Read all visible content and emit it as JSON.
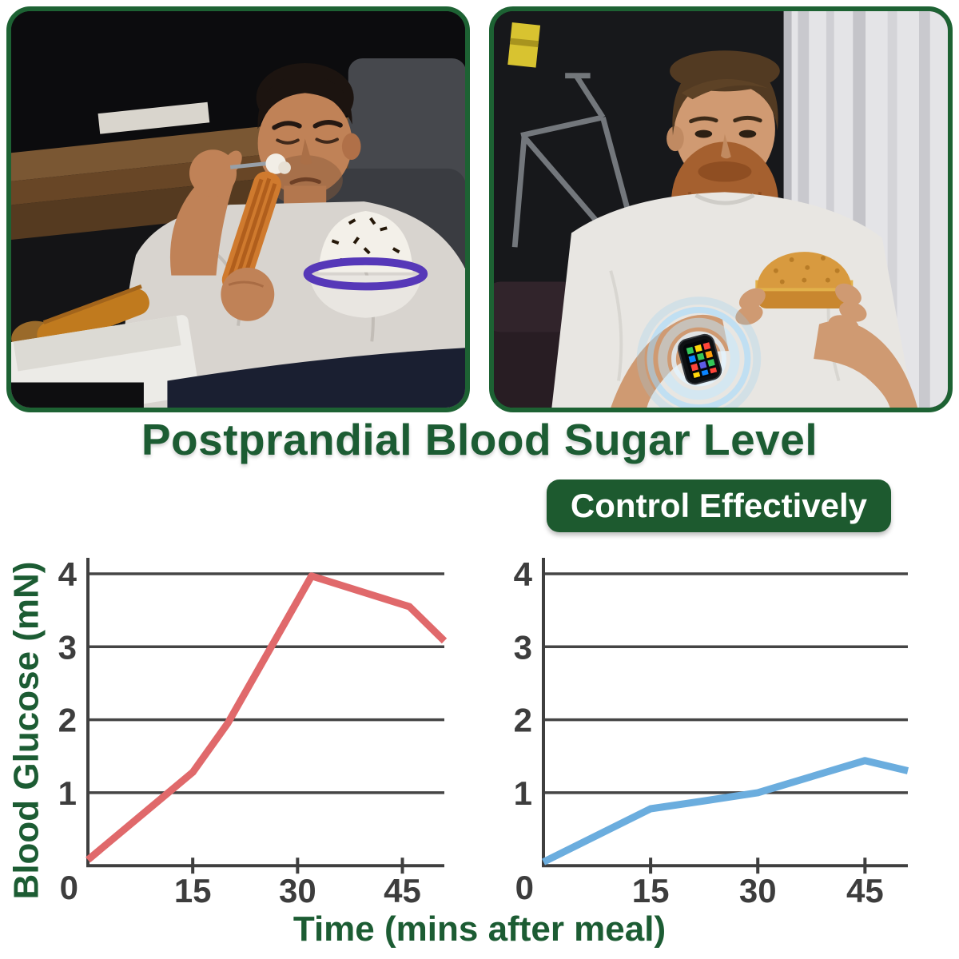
{
  "title": "Postprandial Blood Sugar Level",
  "badge_label": "Control Effectively",
  "axis": {
    "ylabel": "Blood Glucose (mN)",
    "xlabel": "Time (mins after meal)"
  },
  "photos": {
    "left_alt": "Overweight man on a couch eating churros and a cream dessert with a fork",
    "right_alt": "Bearded man in white t-shirt eating a burger while wearing a glowing smartwatch"
  },
  "colors": {
    "dark_green": "#1c5c33",
    "badge_bg": "#1d5a2f",
    "badge_text": "#ffffff",
    "photo_border": "#1d6233",
    "axis": "#3f3f3f",
    "grid": "#454545",
    "tick_text": "#3d3d3d",
    "red_line": "#e0696b",
    "blue_line": "#6badde"
  },
  "chart_data": [
    {
      "type": "line",
      "name": "blood-glucose-uncontrolled",
      "line_color": "#e0696b",
      "line_width": 9,
      "x": [
        0,
        15,
        20,
        32,
        46,
        51
      ],
      "y": [
        0.08,
        1.28,
        1.95,
        3.97,
        3.55,
        3.08
      ],
      "xticks": [
        15,
        30,
        45
      ],
      "yticks": [
        0,
        1,
        2,
        3,
        4
      ],
      "xlim": [
        0,
        51
      ],
      "ylim": [
        0,
        4.35
      ],
      "xlabel": "Time (mins after meal)",
      "ylabel": "Blood Glucose (mN)",
      "grid": "horizontal",
      "axis_color": "#3f3f3f",
      "grid_color": "#454545"
    },
    {
      "type": "line",
      "name": "blood-glucose-controlled",
      "line_color": "#6badde",
      "line_width": 9,
      "x": [
        0,
        15,
        22,
        30,
        45,
        51
      ],
      "y": [
        0.05,
        0.78,
        0.88,
        1.0,
        1.44,
        1.3
      ],
      "xticks": [
        15,
        30,
        45
      ],
      "yticks": [
        0,
        1,
        2,
        3,
        4
      ],
      "xlim": [
        0,
        51
      ],
      "ylim": [
        0,
        4.35
      ],
      "xlabel": "Time (mins after meal)",
      "ylabel": "Blood Glucose (mN)",
      "grid": "horizontal",
      "axis_color": "#3f3f3f",
      "grid_color": "#454545"
    }
  ]
}
